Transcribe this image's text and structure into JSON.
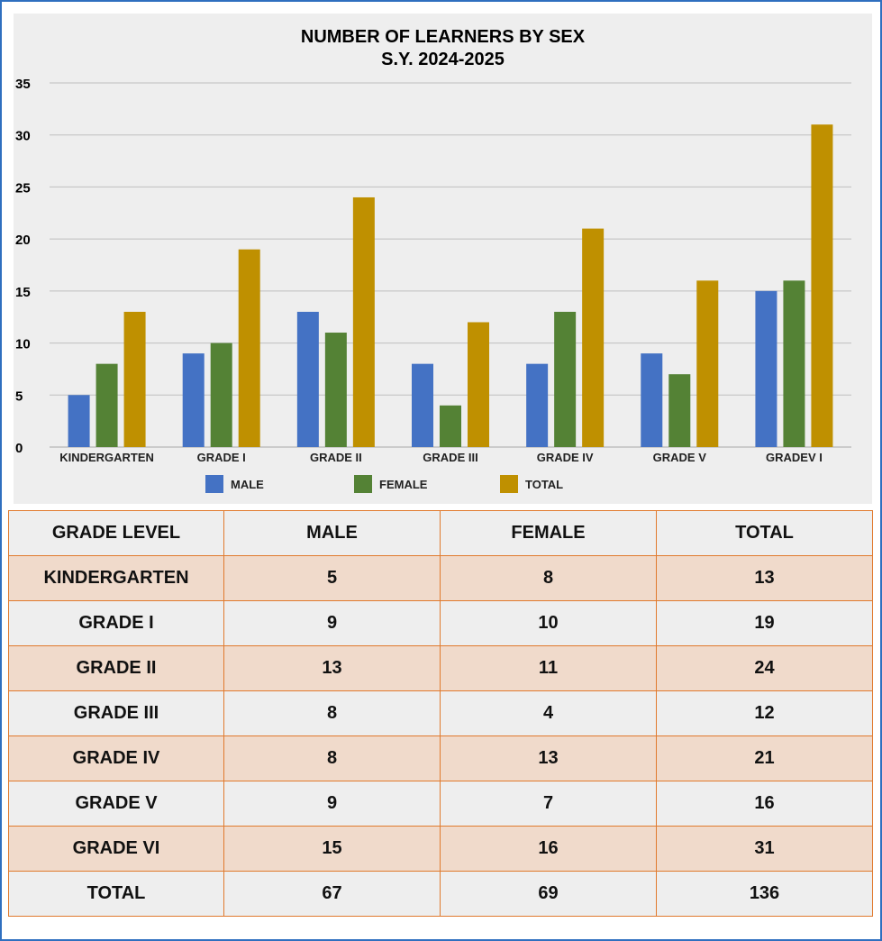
{
  "colors": {
    "male": "#4472c4",
    "female": "#548235",
    "total": "#bf9000",
    "grid": "#bfbfbf",
    "table_border": "#e07a2e",
    "row_shade": "#f0dacb",
    "row_plain": "#eeeeee"
  },
  "chart_data": {
    "type": "bar",
    "title_line1": "NUMBER OF LEARNERS BY SEX",
    "title_line2": "S.Y. 2024-2025",
    "categories": [
      "KINDERGARTEN",
      "GRADE I",
      "GRADE II",
      "GRADE III",
      "GRADE IV",
      "GRADE V",
      "GRADEV I"
    ],
    "series": [
      {
        "name": "MALE",
        "values": [
          5,
          9,
          13,
          8,
          8,
          9,
          15
        ]
      },
      {
        "name": "FEMALE",
        "values": [
          8,
          10,
          11,
          4,
          13,
          7,
          16
        ]
      },
      {
        "name": "TOTAL",
        "values": [
          13,
          19,
          24,
          12,
          21,
          16,
          31
        ]
      }
    ],
    "ylim": [
      0,
      35
    ],
    "yticks": [
      "0",
      "5",
      "10",
      "15",
      "20",
      "25",
      "30",
      "35"
    ],
    "grid": true,
    "legend_position": "bottom"
  },
  "table": {
    "headers": [
      "GRADE LEVEL",
      "MALE",
      "FEMALE",
      "TOTAL"
    ],
    "rows": [
      [
        "KINDERGARTEN",
        "5",
        "8",
        "13"
      ],
      [
        "GRADE I",
        "9",
        "10",
        "19"
      ],
      [
        "GRADE II",
        "13",
        "11",
        "24"
      ],
      [
        "GRADE III",
        "8",
        "4",
        "12"
      ],
      [
        "GRADE IV",
        "8",
        "13",
        "21"
      ],
      [
        "GRADE V",
        "9",
        "7",
        "16"
      ],
      [
        "GRADE VI",
        "15",
        "16",
        "31"
      ],
      [
        "TOTAL",
        "67",
        "69",
        "136"
      ]
    ]
  }
}
